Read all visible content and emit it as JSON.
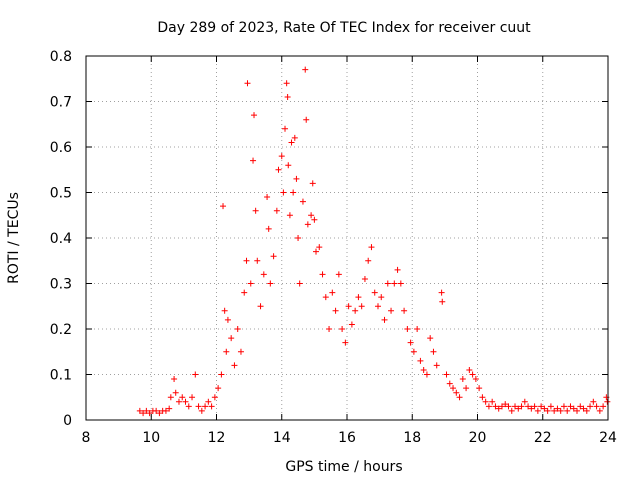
{
  "chart_data": {
    "type": "scatter",
    "title": "Day 289 of 2023, Rate Of TEC Index for receiver cuut",
    "xlabel": "GPS time / hours",
    "ylabel": "ROTI / TECUs",
    "xlim": [
      8,
      24
    ],
    "ylim": [
      0,
      0.8
    ],
    "x_ticks": [
      8,
      10,
      12,
      14,
      16,
      18,
      20,
      22,
      24
    ],
    "x_tick_labels": [
      "8",
      "10",
      "12",
      "14",
      "16",
      "18",
      "20",
      "22",
      "24"
    ],
    "y_ticks": [
      0,
      0.1,
      0.2,
      0.3,
      0.4,
      0.5,
      0.6,
      0.7,
      0.8
    ],
    "y_tick_labels": [
      "0",
      "0.1",
      "0.2",
      "0.3",
      "0.4",
      "0.5",
      "0.6",
      "0.7",
      "0.8"
    ],
    "grid": true,
    "marker": "plus",
    "color": "#ff0000",
    "series": [
      {
        "points": [
          [
            9.65,
            0.02
          ],
          [
            9.75,
            0.015
          ],
          [
            9.85,
            0.02
          ],
          [
            9.95,
            0.015
          ],
          [
            10.05,
            0.02
          ],
          [
            10.15,
            0.02
          ],
          [
            10.25,
            0.015
          ],
          [
            10.35,
            0.02
          ],
          [
            10.45,
            0.02
          ],
          [
            10.55,
            0.025
          ],
          [
            10.6,
            0.05
          ],
          [
            10.7,
            0.09
          ],
          [
            10.75,
            0.06
          ],
          [
            10.85,
            0.04
          ],
          [
            10.95,
            0.05
          ],
          [
            11.05,
            0.04
          ],
          [
            11.15,
            0.03
          ],
          [
            11.25,
            0.05
          ],
          [
            11.35,
            0.1
          ],
          [
            11.45,
            0.03
          ],
          [
            11.55,
            0.02
          ],
          [
            11.65,
            0.03
          ],
          [
            11.75,
            0.04
          ],
          [
            11.85,
            0.03
          ],
          [
            11.95,
            0.05
          ],
          [
            12.05,
            0.07
          ],
          [
            12.15,
            0.1
          ],
          [
            12.2,
            0.47
          ],
          [
            12.25,
            0.24
          ],
          [
            12.3,
            0.15
          ],
          [
            12.35,
            0.22
          ],
          [
            12.45,
            0.18
          ],
          [
            12.55,
            0.12
          ],
          [
            12.65,
            0.2
          ],
          [
            12.75,
            0.15
          ],
          [
            12.85,
            0.28
          ],
          [
            12.95,
            0.74
          ],
          [
            12.92,
            0.35
          ],
          [
            13.05,
            0.3
          ],
          [
            13.15,
            0.67
          ],
          [
            13.12,
            0.57
          ],
          [
            13.2,
            0.46
          ],
          [
            13.25,
            0.35
          ],
          [
            13.35,
            0.25
          ],
          [
            13.45,
            0.32
          ],
          [
            13.55,
            0.49
          ],
          [
            13.6,
            0.42
          ],
          [
            13.65,
            0.3
          ],
          [
            13.75,
            0.36
          ],
          [
            13.85,
            0.46
          ],
          [
            13.9,
            0.55
          ],
          [
            14.0,
            0.58
          ],
          [
            14.05,
            0.5
          ],
          [
            14.1,
            0.64
          ],
          [
            14.15,
            0.74
          ],
          [
            14.18,
            0.71
          ],
          [
            14.2,
            0.56
          ],
          [
            14.25,
            0.45
          ],
          [
            14.3,
            0.61
          ],
          [
            14.35,
            0.5
          ],
          [
            14.4,
            0.62
          ],
          [
            14.45,
            0.53
          ],
          [
            14.5,
            0.4
          ],
          [
            14.55,
            0.3
          ],
          [
            14.65,
            0.48
          ],
          [
            14.75,
            0.66
          ],
          [
            14.72,
            0.77
          ],
          [
            14.8,
            0.43
          ],
          [
            14.9,
            0.45
          ],
          [
            14.95,
            0.52
          ],
          [
            15.0,
            0.44
          ],
          [
            15.05,
            0.37
          ],
          [
            15.15,
            0.38
          ],
          [
            15.25,
            0.32
          ],
          [
            15.35,
            0.27
          ],
          [
            15.45,
            0.2
          ],
          [
            15.55,
            0.28
          ],
          [
            15.65,
            0.24
          ],
          [
            15.75,
            0.32
          ],
          [
            15.85,
            0.2
          ],
          [
            15.95,
            0.17
          ],
          [
            16.05,
            0.25
          ],
          [
            16.15,
            0.21
          ],
          [
            16.25,
            0.24
          ],
          [
            16.35,
            0.27
          ],
          [
            16.45,
            0.25
          ],
          [
            16.55,
            0.31
          ],
          [
            16.65,
            0.35
          ],
          [
            16.75,
            0.38
          ],
          [
            16.85,
            0.28
          ],
          [
            16.95,
            0.25
          ],
          [
            17.05,
            0.27
          ],
          [
            17.15,
            0.22
          ],
          [
            17.25,
            0.3
          ],
          [
            17.35,
            0.24
          ],
          [
            17.45,
            0.3
          ],
          [
            17.55,
            0.33
          ],
          [
            17.65,
            0.3
          ],
          [
            17.75,
            0.24
          ],
          [
            17.85,
            0.2
          ],
          [
            17.95,
            0.17
          ],
          [
            18.05,
            0.15
          ],
          [
            18.15,
            0.2
          ],
          [
            18.25,
            0.13
          ],
          [
            18.35,
            0.11
          ],
          [
            18.45,
            0.1
          ],
          [
            18.55,
            0.18
          ],
          [
            18.65,
            0.15
          ],
          [
            18.75,
            0.12
          ],
          [
            18.9,
            0.28
          ],
          [
            18.92,
            0.26
          ],
          [
            19.05,
            0.1
          ],
          [
            19.15,
            0.08
          ],
          [
            19.25,
            0.07
          ],
          [
            19.35,
            0.06
          ],
          [
            19.45,
            0.05
          ],
          [
            19.55,
            0.09
          ],
          [
            19.65,
            0.07
          ],
          [
            19.75,
            0.11
          ],
          [
            19.85,
            0.1
          ],
          [
            19.95,
            0.09
          ],
          [
            20.05,
            0.07
          ],
          [
            20.15,
            0.05
          ],
          [
            20.25,
            0.04
          ],
          [
            20.35,
            0.03
          ],
          [
            20.45,
            0.04
          ],
          [
            20.55,
            0.03
          ],
          [
            20.65,
            0.025
          ],
          [
            20.75,
            0.03
          ],
          [
            20.85,
            0.035
          ],
          [
            20.95,
            0.03
          ],
          [
            21.05,
            0.02
          ],
          [
            21.15,
            0.03
          ],
          [
            21.25,
            0.025
          ],
          [
            21.35,
            0.03
          ],
          [
            21.45,
            0.04
          ],
          [
            21.55,
            0.03
          ],
          [
            21.65,
            0.025
          ],
          [
            21.75,
            0.03
          ],
          [
            21.85,
            0.02
          ],
          [
            21.95,
            0.03
          ],
          [
            22.05,
            0.025
          ],
          [
            22.15,
            0.02
          ],
          [
            22.25,
            0.03
          ],
          [
            22.35,
            0.02
          ],
          [
            22.45,
            0.025
          ],
          [
            22.55,
            0.02
          ],
          [
            22.65,
            0.03
          ],
          [
            22.75,
            0.02
          ],
          [
            22.85,
            0.03
          ],
          [
            22.95,
            0.025
          ],
          [
            23.05,
            0.02
          ],
          [
            23.15,
            0.03
          ],
          [
            23.25,
            0.025
          ],
          [
            23.35,
            0.02
          ],
          [
            23.45,
            0.03
          ],
          [
            23.55,
            0.04
          ],
          [
            23.65,
            0.03
          ],
          [
            23.75,
            0.02
          ],
          [
            23.85,
            0.03
          ],
          [
            23.95,
            0.05
          ],
          [
            23.98,
            0.04
          ]
        ]
      }
    ]
  }
}
